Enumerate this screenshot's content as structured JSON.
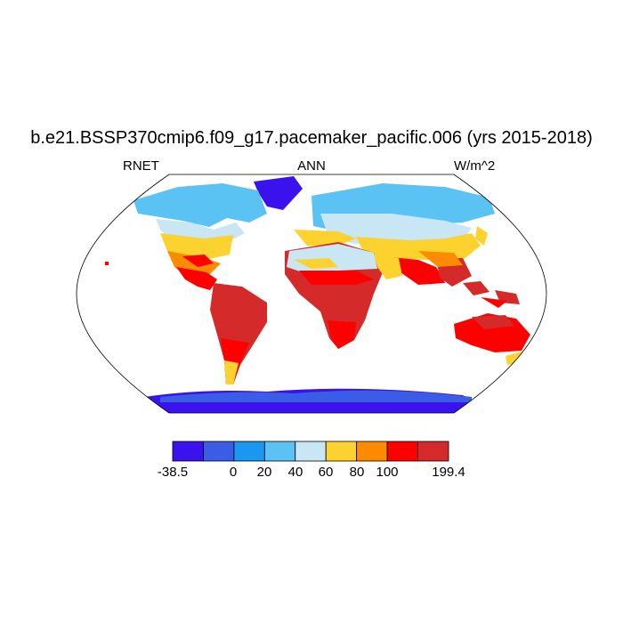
{
  "title": "b.e21.BSSP370cmip6.f09_g17.pacemaker_pacific.006 (yrs 2015-2018)",
  "subtitles": {
    "left": "RNET",
    "center": "ANN",
    "right": "W/m^2"
  },
  "colorbar": {
    "colors": [
      "#3a12ee",
      "#3b5de6",
      "#1a97f0",
      "#5ac3f4",
      "#c8e6f4",
      "#fcd22f",
      "#fd8b00",
      "#fe0000",
      "#d42a2a"
    ],
    "labels": [
      "-38.5",
      "0",
      "20",
      "40",
      "60",
      "80",
      "100",
      "199.4"
    ]
  },
  "map": {
    "projection": "Robinson",
    "variable": "RNET",
    "units": "W/m^2"
  }
}
